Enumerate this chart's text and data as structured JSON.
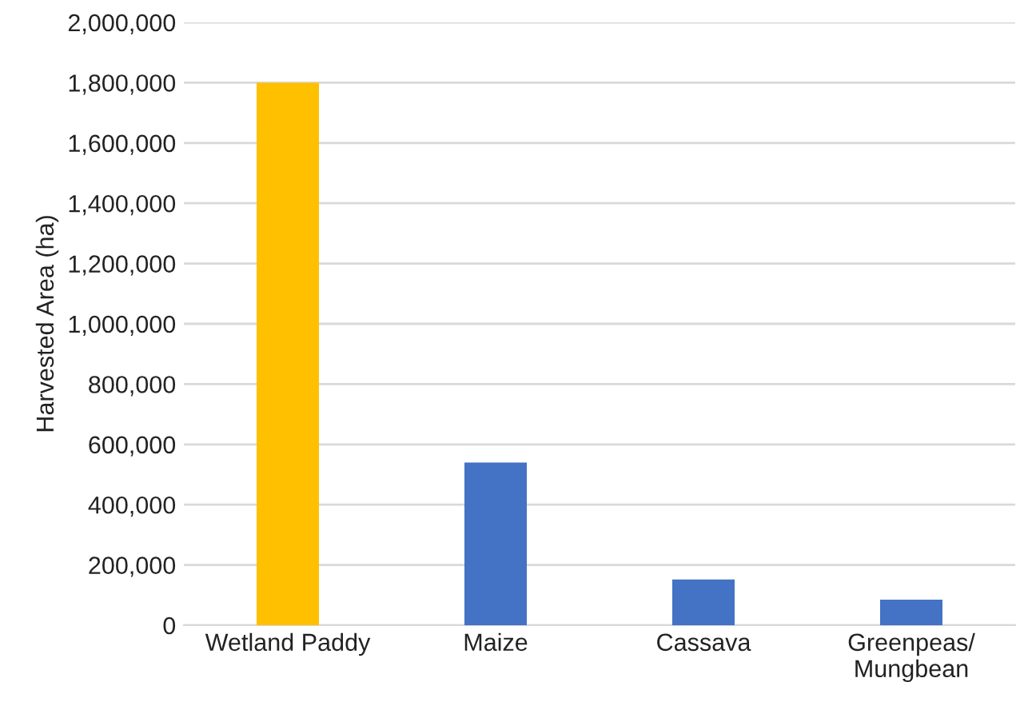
{
  "chart_data": {
    "type": "bar",
    "ylabel": "Harvested Area (ha)",
    "categories": [
      "Wetland Paddy",
      "Maize",
      "Cassava",
      "Greenpeas/\nMungbean"
    ],
    "values": [
      1800000,
      540000,
      152000,
      85000
    ],
    "colors": [
      "#ffc000",
      "#4472c4",
      "#4472c4",
      "#4472c4"
    ],
    "ylim": [
      0,
      2000000
    ],
    "yticks": [
      {
        "value": 0,
        "label": "0"
      },
      {
        "value": 200000,
        "label": "200,000"
      },
      {
        "value": 400000,
        "label": "400,000"
      },
      {
        "value": 600000,
        "label": "600,000"
      },
      {
        "value": 800000,
        "label": "800,000"
      },
      {
        "value": 1000000,
        "label": "1,000,000"
      },
      {
        "value": 1200000,
        "label": "1,200,000"
      },
      {
        "value": 1400000,
        "label": "1,400,000"
      },
      {
        "value": 1600000,
        "label": "1,600,000"
      },
      {
        "value": 1800000,
        "label": "1,800,000"
      },
      {
        "value": 2000000,
        "label": "2,000,000"
      }
    ],
    "grid": "y",
    "legend": false
  }
}
